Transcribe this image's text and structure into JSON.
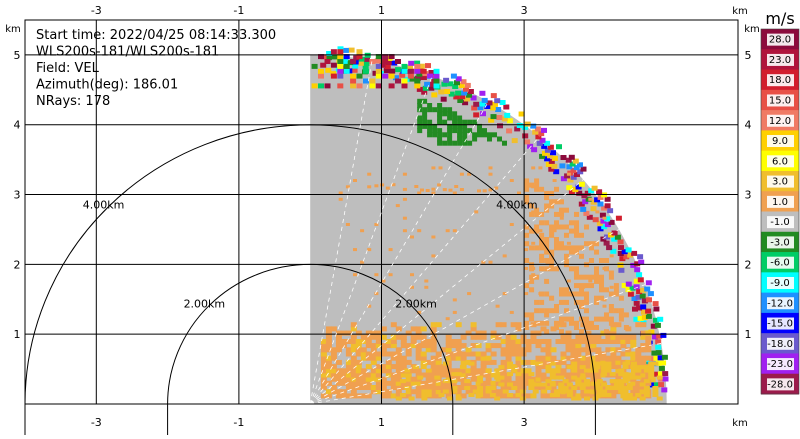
{
  "chart_data": {
    "type": "heatmap",
    "plot_kind": "PPI radar sector",
    "info_lines": [
      "Start time: 2022/04/25 08:14:33.300",
      "WLS200s-181/WLS200s-181",
      "Field: VEL",
      "Azimuth(deg): 186.01",
      "NRays: 178"
    ],
    "x_unit": "km",
    "y_unit": "km",
    "xlim": [
      -4.0,
      6.0
    ],
    "ylim": [
      0.0,
      5.5
    ],
    "x_ticks": [
      -3,
      -1,
      1,
      3
    ],
    "y_ticks": [
      1,
      2,
      3,
      4,
      5
    ],
    "grid": true,
    "range_rings": [
      {
        "radius_km": 2.0,
        "label": "2.00km"
      },
      {
        "radius_km": 4.0,
        "label": "4.00km"
      }
    ],
    "sector": {
      "origin_x_km": 0.0,
      "start_deg": 0,
      "end_deg": 90,
      "max_range_km": 5.0
    },
    "colorbar": {
      "unit": "m/s",
      "tick_labels": [
        "28.0",
        "23.0",
        "18.0",
        "15.0",
        "12.0",
        "9.0",
        "6.0",
        "3.0",
        "1.0",
        "-1.0",
        "-3.0",
        "-6.0",
        "-9.0",
        "-12.0",
        "-15.0",
        "-18.0",
        "-23.0",
        "-28.0"
      ],
      "colors": [
        "#8c0a3c",
        "#b0143c",
        "#d21e2d",
        "#e85046",
        "#f07a64",
        "#ffd000",
        "#ffff00",
        "#f0be2d",
        "#f0a050",
        "#bebebe",
        "#228b22",
        "#00cd66",
        "#00ffff",
        "#1e90ff",
        "#0000ff",
        "#6a5acd",
        "#a020f0",
        "#9b1b4b"
      ]
    },
    "dominant_values": [
      {
        "label": "1.0",
        "color": "#f0a050"
      },
      {
        "label": "-1.0",
        "color": "#bebebe"
      },
      {
        "label": "3.0",
        "color": "#f0be2d"
      },
      {
        "label": "-3.0",
        "color": "#228b22"
      }
    ]
  }
}
